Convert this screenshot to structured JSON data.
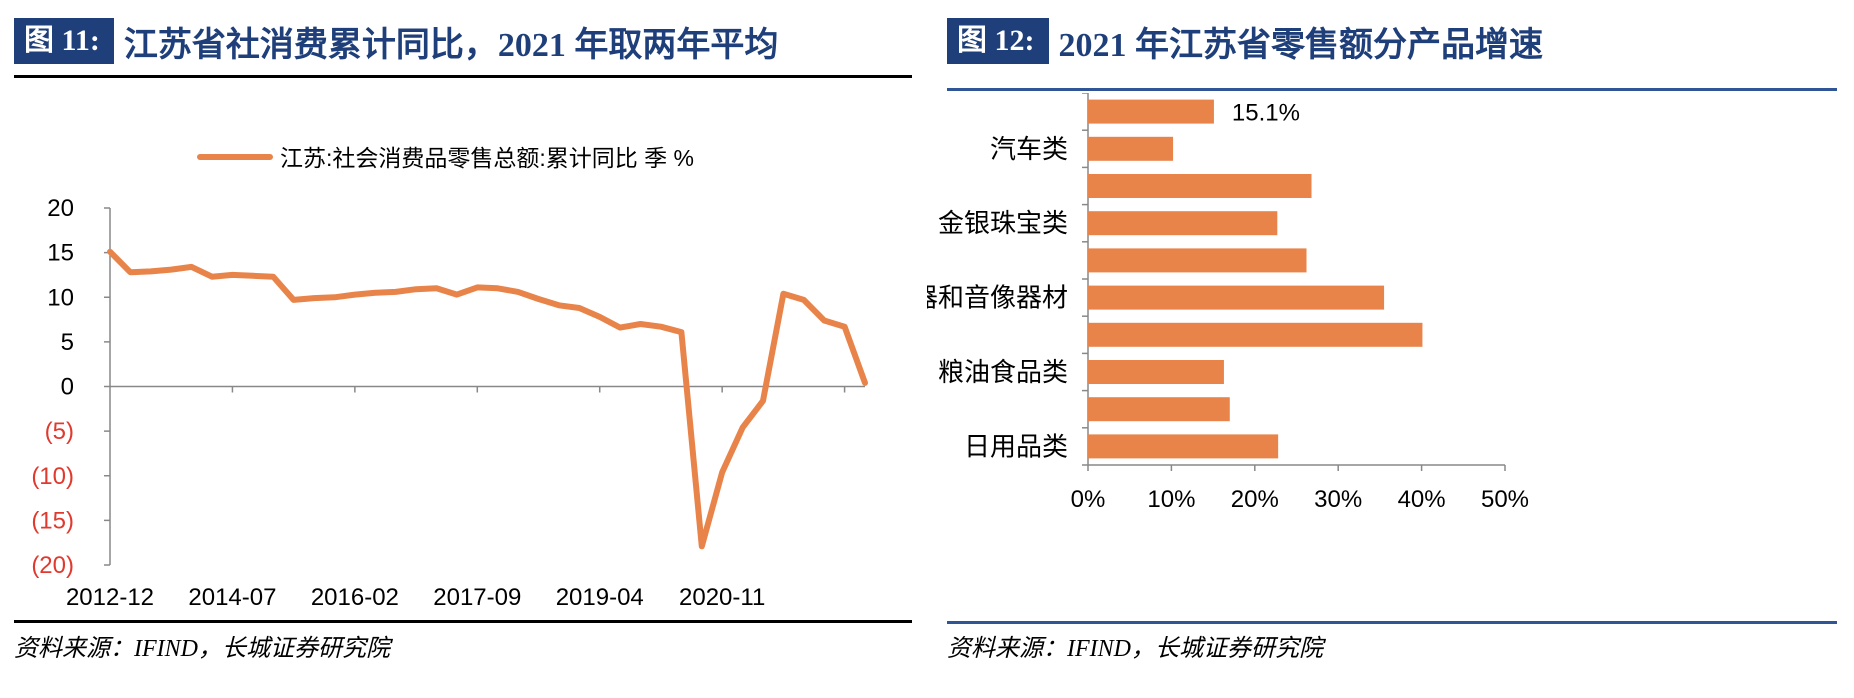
{
  "left": {
    "badge": "图 11:",
    "title": "江苏省社消费累计同比，2021 年取两年平均",
    "source": "资料来源：IFIND，长城证券研究院",
    "colors": {
      "line": "#e8844a",
      "negative": "#e03a2f",
      "header": "#1f3f7a"
    }
  },
  "right": {
    "badge": "图 12:",
    "title": "2021 年江苏省零售额分产品增速",
    "source": "资料来源：IFIND，长城证券研究院",
    "colors": {
      "bar": "#e8844a",
      "header": "#1f3f7a",
      "rule": "#2f5597"
    }
  },
  "chart_data": [
    {
      "type": "line",
      "title": "",
      "xlabel": "",
      "ylabel": "",
      "ylim": [
        -20,
        20
      ],
      "yticks": [
        20,
        15,
        10,
        5,
        0,
        -5,
        -10,
        -15,
        -20
      ],
      "ytick_labels": [
        "20",
        "15",
        "10",
        "5",
        "0",
        "(5)",
        "(10)",
        "(15)",
        "(20)"
      ],
      "xtick_labels": [
        "2012-12",
        "2014-07",
        "2016-02",
        "2017-09",
        "2019-04",
        "2020-11"
      ],
      "legend": {
        "position": "top",
        "entries": [
          "江苏:社会消费品零售总额:累计同比 季 %"
        ]
      },
      "grid": false,
      "series": [
        {
          "name": "江苏:社会消费品零售总额:累计同比 季 %",
          "values": [
            15.1,
            12.8,
            12.9,
            13.1,
            13.4,
            12.3,
            12.5,
            12.4,
            12.3,
            9.7,
            9.9,
            10.0,
            10.3,
            10.5,
            10.6,
            10.9,
            11.0,
            10.3,
            11.1,
            11.0,
            10.6,
            9.8,
            9.1,
            8.8,
            7.8,
            6.6,
            7.0,
            6.7,
            6.1,
            -17.9,
            -9.6,
            -4.6,
            -1.6,
            10.4,
            9.7,
            7.4,
            6.7,
            0.4
          ]
        }
      ]
    },
    {
      "type": "bar",
      "orientation": "horizontal",
      "title": "",
      "xlabel": "",
      "ylabel": "",
      "xlim": [
        0,
        0.5
      ],
      "xtick_labels": [
        "0%",
        "10%",
        "20%",
        "30%",
        "40%",
        "50%"
      ],
      "categories": [
        "",
        "汽车类",
        "",
        "金银珠宝类",
        "",
        "智能家用电器和音像器材",
        "",
        "粮油食品类",
        "",
        "日用品类"
      ],
      "values": [
        0.151,
        0.102,
        0.268,
        0.227,
        0.262,
        0.355,
        0.401,
        0.163,
        0.17,
        0.228
      ],
      "data_labels": [
        "15.1%",
        "",
        "",
        "",
        "",
        "",
        "",
        "",
        "",
        ""
      ],
      "grid": false
    }
  ]
}
